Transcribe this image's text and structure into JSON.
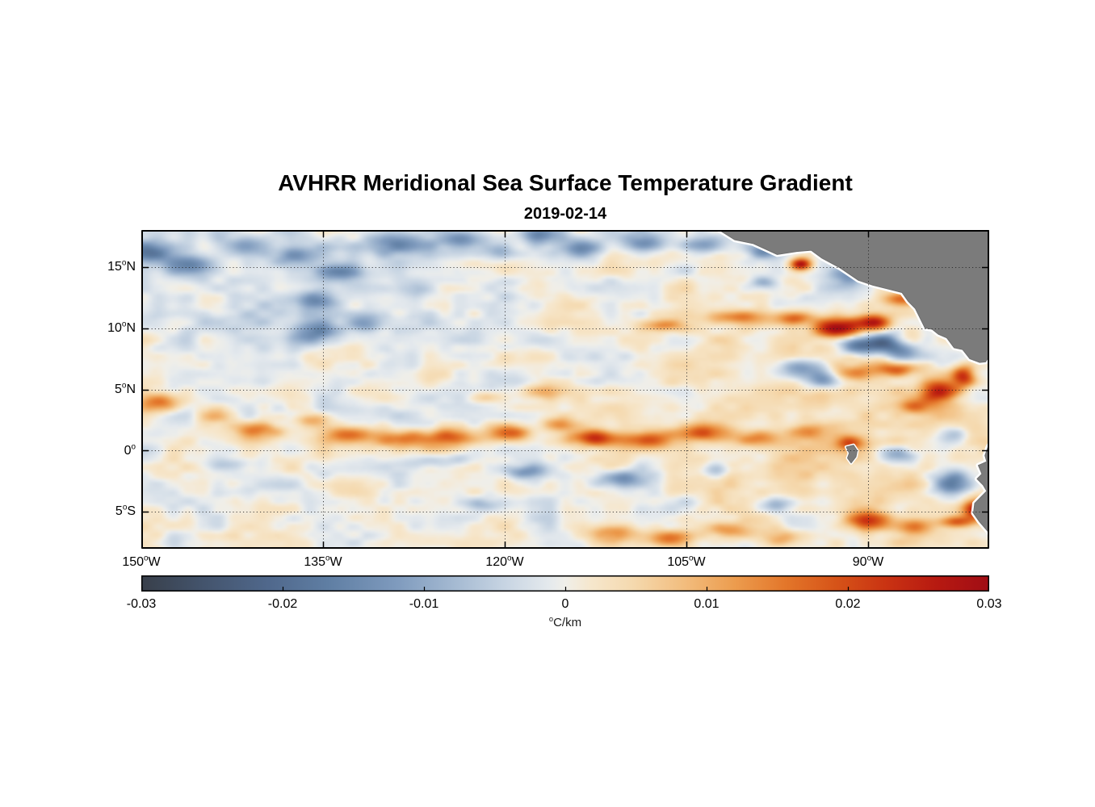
{
  "chart_data": {
    "type": "heatmap",
    "title": "AVHRR Meridional Sea Surface Temperature Gradient",
    "subtitle": "2019-02-14",
    "x_axis": {
      "range": [
        -150,
        -80
      ],
      "ticks": [
        {
          "v": -150,
          "deg": "150",
          "sup": "o",
          "dir": "W"
        },
        {
          "v": -135,
          "deg": "135",
          "sup": "o",
          "dir": "W"
        },
        {
          "v": -120,
          "deg": "120",
          "sup": "o",
          "dir": "W"
        },
        {
          "v": -105,
          "deg": "105",
          "sup": "o",
          "dir": "W"
        },
        {
          "v": -90,
          "deg": "90",
          "sup": "o",
          "dir": "W"
        }
      ]
    },
    "y_axis": {
      "range": [
        -8,
        18
      ],
      "ticks": [
        {
          "v": 15,
          "deg": "15",
          "sup": "o",
          "dir": "N"
        },
        {
          "v": 10,
          "deg": "10",
          "sup": "o",
          "dir": "N"
        },
        {
          "v": 5,
          "deg": "5",
          "sup": "o",
          "dir": "N"
        },
        {
          "v": 0,
          "deg": "0",
          "sup": "o",
          "dir": ""
        },
        {
          "v": -5,
          "deg": "5",
          "sup": "o",
          "dir": "S"
        }
      ]
    },
    "colorbar": {
      "range": [
        -0.03,
        0.03
      ],
      "units_sup": "o",
      "units": "C/km",
      "ticks": [
        {
          "v": -0.03,
          "label": "-0.03"
        },
        {
          "v": -0.02,
          "label": "-0.02"
        },
        {
          "v": -0.01,
          "label": "-0.01"
        },
        {
          "v": 0,
          "label": "0"
        },
        {
          "v": 0.01,
          "label": "0.01"
        },
        {
          "v": 0.02,
          "label": "0.02"
        },
        {
          "v": 0.03,
          "label": "0.03"
        }
      ],
      "colormap": [
        [
          0.0,
          "#383f4a"
        ],
        [
          0.07,
          "#43536b"
        ],
        [
          0.15,
          "#50688c"
        ],
        [
          0.22,
          "#5f7ea3"
        ],
        [
          0.3,
          "#7e9abd"
        ],
        [
          0.37,
          "#a5bad2"
        ],
        [
          0.43,
          "#c8d5e3"
        ],
        [
          0.48,
          "#e4e9ed"
        ],
        [
          0.5,
          "#f0efe9"
        ],
        [
          0.53,
          "#f6e7cd"
        ],
        [
          0.58,
          "#f5d9ae"
        ],
        [
          0.64,
          "#f2bd7e"
        ],
        [
          0.7,
          "#ec9c4e"
        ],
        [
          0.76,
          "#e3762a"
        ],
        [
          0.82,
          "#d65318"
        ],
        [
          0.88,
          "#c93212"
        ],
        [
          0.94,
          "#b61911"
        ],
        [
          1.0,
          "#a00d15"
        ]
      ]
    },
    "grid": {
      "style": "dotted",
      "color": "rgba(35,35,35,0.85)"
    },
    "frame_color": "#000000",
    "land": {
      "color": "#7b7b7b",
      "edge": "#6e6e6e",
      "halo": "#ffffff",
      "polygons": {
        "central_america": [
          [
            -103.5,
            18.8
          ],
          [
            -102.3,
            18.0
          ],
          [
            -101,
            17.2
          ],
          [
            -99.5,
            16.9
          ],
          [
            -97.5,
            16.0
          ],
          [
            -95.9,
            16.25
          ],
          [
            -94.7,
            16.35
          ],
          [
            -93.8,
            15.7
          ],
          [
            -92.3,
            14.9
          ],
          [
            -90.8,
            13.9
          ],
          [
            -89.6,
            13.5
          ],
          [
            -88.2,
            13.15
          ],
          [
            -87.2,
            12.9
          ],
          [
            -86.7,
            12.2
          ],
          [
            -86.1,
            11.6
          ],
          [
            -85.65,
            10.7
          ],
          [
            -85.3,
            10.0
          ],
          [
            -84.7,
            9.9
          ],
          [
            -84.2,
            9.5
          ],
          [
            -83.5,
            9.2
          ],
          [
            -82.9,
            8.4
          ],
          [
            -82.2,
            8.25
          ],
          [
            -81.6,
            7.5
          ],
          [
            -80.8,
            7.2
          ],
          [
            -80.3,
            7.25
          ],
          [
            -80.0,
            7.7
          ],
          [
            -79.7,
            8.3
          ],
          [
            -79.2,
            8.6
          ],
          [
            -78.5,
            8.9
          ],
          [
            -77.5,
            9.5
          ],
          [
            -77.5,
            19.5
          ]
        ],
        "south_america": [
          [
            -77.5,
            2.0
          ],
          [
            -78.8,
            1.3
          ],
          [
            -79.7,
            0.9
          ],
          [
            -80.1,
            0.3
          ],
          [
            -80.35,
            -0.4
          ],
          [
            -80.2,
            -0.9
          ],
          [
            -80.9,
            -1.2
          ],
          [
            -80.6,
            -1.9
          ],
          [
            -81.0,
            -2.3
          ],
          [
            -80.5,
            -2.8
          ],
          [
            -80.2,
            -3.3
          ],
          [
            -81.2,
            -4.3
          ],
          [
            -81.3,
            -5.1
          ],
          [
            -80.8,
            -5.8
          ],
          [
            -80.1,
            -6.6
          ],
          [
            -79.4,
            -7.6
          ],
          [
            -78.9,
            -8.6
          ],
          [
            -77.5,
            -9.0
          ]
        ],
        "galapagos": [
          [
            -91.8,
            0.3
          ],
          [
            -91.2,
            0.45
          ],
          [
            -90.9,
            0.0
          ],
          [
            -91.0,
            -0.5
          ],
          [
            -91.4,
            -1.0
          ],
          [
            -91.7,
            -0.6
          ],
          [
            -91.55,
            -0.2
          ]
        ]
      }
    },
    "field": {
      "noise": [
        {
          "scale_lon": 3.0,
          "scale_lat": 1.5,
          "amp": 0.0036,
          "seed": 5
        },
        {
          "scale_lon": 1.25,
          "scale_lat": 0.7,
          "amp": 0.0022,
          "seed": 23
        }
      ],
      "blobs": [
        [
          -149.5,
          16.3,
          2.0,
          0.9,
          -0.014
        ],
        [
          -146,
          15.2,
          2.2,
          0.9,
          -0.016
        ],
        [
          -141.5,
          16.8,
          2.0,
          0.8,
          -0.013
        ],
        [
          -137.5,
          16.0,
          1.8,
          0.8,
          -0.011
        ],
        [
          -133.5,
          14.7,
          2.0,
          0.8,
          -0.014
        ],
        [
          -129,
          16.9,
          2.4,
          0.9,
          -0.015
        ],
        [
          -123.5,
          17.4,
          2.2,
          0.8,
          -0.014
        ],
        [
          -120.5,
          16.3,
          1.4,
          0.7,
          -0.01
        ],
        [
          -117,
          17.8,
          2.0,
          0.8,
          -0.013
        ],
        [
          -135.5,
          12.4,
          1.5,
          0.7,
          -0.011
        ],
        [
          -135.8,
          9.6,
          1.8,
          1.0,
          -0.015
        ],
        [
          -131.5,
          10.4,
          1.2,
          0.7,
          -0.009
        ],
        [
          -127,
          13.3,
          1.6,
          0.7,
          -0.008
        ],
        [
          -113.5,
          16.6,
          2.0,
          0.8,
          -0.013
        ],
        [
          -108.5,
          17.1,
          1.8,
          0.8,
          -0.013
        ],
        [
          -103.5,
          16.9,
          2.0,
          0.8,
          -0.014
        ],
        [
          -98.5,
          16.4,
          1.4,
          0.6,
          -0.012
        ],
        [
          -98.5,
          13.8,
          1.2,
          0.5,
          -0.009
        ],
        [
          -91.5,
          14.3,
          1.5,
          0.8,
          -0.012
        ],
        [
          -148.5,
          3.9,
          1.8,
          0.8,
          0.016
        ],
        [
          -144,
          2.8,
          1.5,
          0.6,
          0.01
        ],
        [
          -140.5,
          1.6,
          2.0,
          0.7,
          0.014
        ],
        [
          -136,
          2.5,
          1.5,
          0.6,
          0.012
        ],
        [
          -133,
          1.2,
          2.0,
          0.7,
          0.013
        ],
        [
          -128.5,
          0.9,
          2.2,
          0.7,
          0.016
        ],
        [
          -124.5,
          1.1,
          2.4,
          0.8,
          0.02
        ],
        [
          -119.5,
          1.4,
          2.0,
          0.7,
          0.016
        ],
        [
          -115.8,
          2.1,
          1.4,
          0.6,
          0.012
        ],
        [
          -112.5,
          1.0,
          2.2,
          0.7,
          0.022
        ],
        [
          -108,
          0.8,
          2.0,
          0.7,
          0.018
        ],
        [
          -103.5,
          1.4,
          2.0,
          0.7,
          0.014
        ],
        [
          -99,
          1.0,
          1.8,
          0.7,
          0.014
        ],
        [
          -95,
          1.5,
          1.5,
          0.7,
          0.012
        ],
        [
          -91.5,
          0.6,
          1.2,
          0.6,
          0.015
        ],
        [
          -117,
          4.8,
          1.8,
          0.6,
          0.01
        ],
        [
          -121.5,
          4.4,
          1.2,
          0.5,
          0.008
        ],
        [
          -107,
          10.3,
          1.8,
          0.5,
          0.013
        ],
        [
          -95.5,
          15.3,
          0.9,
          0.5,
          0.03
        ],
        [
          -101,
          10.9,
          2.4,
          0.6,
          0.014
        ],
        [
          -96,
          10.9,
          1.5,
          0.6,
          0.017
        ],
        [
          -92.5,
          10.0,
          1.8,
          0.8,
          0.027
        ],
        [
          -89.5,
          10.5,
          1.4,
          0.7,
          0.024
        ],
        [
          -90.5,
          8.6,
          1.8,
          0.8,
          -0.02
        ],
        [
          -88.5,
          8.9,
          1.2,
          0.8,
          -0.018
        ],
        [
          -87,
          8.0,
          1.5,
          0.9,
          -0.016
        ],
        [
          -95.5,
          6.8,
          2.0,
          0.9,
          -0.016
        ],
        [
          -93.5,
          5.8,
          1.5,
          0.8,
          -0.014
        ],
        [
          -91,
          6.3,
          1.8,
          0.6,
          0.015
        ],
        [
          -87.5,
          6.7,
          1.8,
          0.6,
          0.017
        ],
        [
          -84,
          4.8,
          1.5,
          0.9,
          0.027
        ],
        [
          -82,
          6.1,
          1.0,
          0.9,
          0.023
        ],
        [
          -86,
          3.6,
          1.5,
          0.6,
          0.012
        ],
        [
          -87,
          12.4,
          1.6,
          0.6,
          0.014
        ],
        [
          -143,
          -1.2,
          2.0,
          0.6,
          -0.007
        ],
        [
          -126,
          -0.9,
          2.6,
          0.6,
          -0.007
        ],
        [
          -118.5,
          -1.8,
          1.8,
          0.6,
          -0.012
        ],
        [
          -110.5,
          -2.3,
          2.0,
          0.7,
          -0.014
        ],
        [
          -102.5,
          -1.6,
          1.5,
          0.6,
          -0.009
        ],
        [
          -122,
          -4.5,
          1.5,
          0.6,
          -0.008
        ],
        [
          -97.5,
          -4.5,
          1.5,
          0.6,
          -0.009
        ],
        [
          -111,
          -6.8,
          2.0,
          0.7,
          0.013
        ],
        [
          -106.5,
          -7.3,
          1.8,
          0.7,
          0.015
        ],
        [
          -101.5,
          -6.6,
          1.8,
          0.7,
          0.013
        ],
        [
          -97,
          -7.2,
          1.5,
          0.7,
          0.011
        ],
        [
          -90,
          -5.8,
          2.0,
          0.7,
          0.015
        ],
        [
          -86,
          -6.3,
          1.5,
          0.7,
          0.013
        ],
        [
          -87.5,
          -0.4,
          1.6,
          0.7,
          -0.014
        ],
        [
          -83,
          -2.8,
          1.6,
          1.0,
          -0.021
        ],
        [
          -83,
          1.2,
          1.5,
          0.8,
          -0.01
        ],
        [
          -81,
          -4.9,
          1.0,
          0.8,
          0.024
        ],
        [
          -82.5,
          -5.9,
          1.5,
          0.5,
          0.018
        ],
        [
          -95,
          4,
          14,
          6,
          0.004
        ],
        [
          -88,
          -4,
          12,
          5,
          0.003
        ],
        [
          -140,
          14,
          12,
          5,
          -0.003
        ]
      ]
    }
  }
}
